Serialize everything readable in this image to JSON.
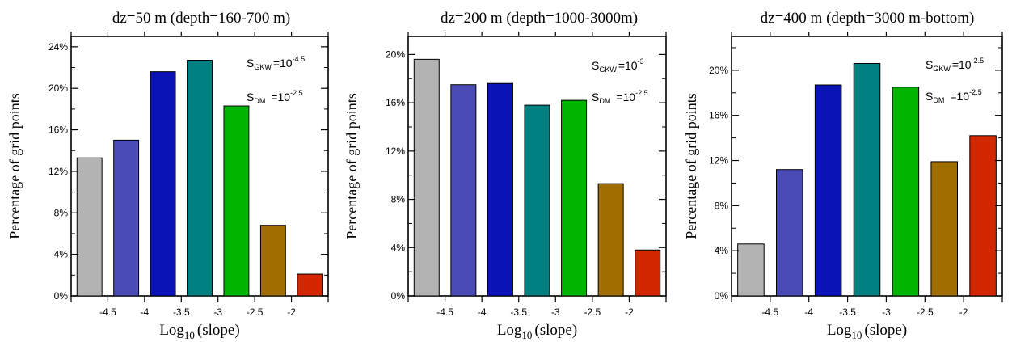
{
  "colors": {
    "bars": [
      "#b3b3b3",
      "#4b4bb8",
      "#0a14b4",
      "#008080",
      "#00b400",
      "#a06e00",
      "#d22800"
    ]
  },
  "chart_data": [
    {
      "type": "bar",
      "title": "dz=50 m (depth=160-700 m)",
      "xlabel": {
        "base": "Log",
        "sub": "10",
        "rest": "(slope)"
      },
      "ylabel": "Percentage of grid points",
      "x_ticks": [
        "-4.5",
        "-4",
        "-3.5",
        "-3",
        "-2.5",
        "-2"
      ],
      "y_ticks": [
        "0%",
        "4%",
        "8%",
        "12%",
        "16%",
        "20%",
        "24%"
      ],
      "ylim": [
        0,
        25
      ],
      "values": [
        13.3,
        15.0,
        21.6,
        22.7,
        18.3,
        6.8,
        2.1
      ],
      "annotations": [
        {
          "label": "S",
          "sub": "GKW",
          "eq": "=10",
          "sup": "-4.5"
        },
        {
          "label": "S",
          "sub": "DM",
          "eq": "=10",
          "sup": "-2.5"
        }
      ]
    },
    {
      "type": "bar",
      "title": "dz=200 m (depth=1000-3000m)",
      "xlabel": {
        "base": "Log",
        "sub": "10",
        "rest": "(slope)"
      },
      "ylabel": "Percentage of grid points",
      "x_ticks": [
        "-4.5",
        "-4",
        "-3.5",
        "-3",
        "-2.5",
        "-2"
      ],
      "y_ticks": [
        "0%",
        "4%",
        "8%",
        "12%",
        "16%",
        "20%"
      ],
      "ylim": [
        0,
        21.5
      ],
      "values": [
        19.6,
        17.5,
        17.6,
        15.8,
        16.2,
        9.3,
        3.8
      ],
      "annotations": [
        {
          "label": "S",
          "sub": "GKW",
          "eq": "=10",
          "sup": "-3"
        },
        {
          "label": "S",
          "sub": "DM",
          "eq": "=10",
          "sup": "-2.5"
        }
      ]
    },
    {
      "type": "bar",
      "title": "dz=400 m (depth=3000 m-bottom)",
      "xlabel": {
        "base": "Log",
        "sub": "10",
        "rest": "(slope)"
      },
      "ylabel": "Percentage of grid points",
      "x_ticks": [
        "-4.5",
        "-4",
        "-3.5",
        "-3",
        "-2.5",
        "-2"
      ],
      "y_ticks": [
        "0%",
        "4%",
        "8%",
        "12%",
        "16%",
        "20%"
      ],
      "ylim": [
        0,
        23
      ],
      "values": [
        4.6,
        11.2,
        18.7,
        20.6,
        18.5,
        11.9,
        14.2
      ],
      "annotations": [
        {
          "label": "S",
          "sub": "GKW",
          "eq": "=10",
          "sup": "-2.5"
        },
        {
          "label": "S",
          "sub": "DM",
          "eq": "=10",
          "sup": "-2.5"
        }
      ]
    }
  ]
}
